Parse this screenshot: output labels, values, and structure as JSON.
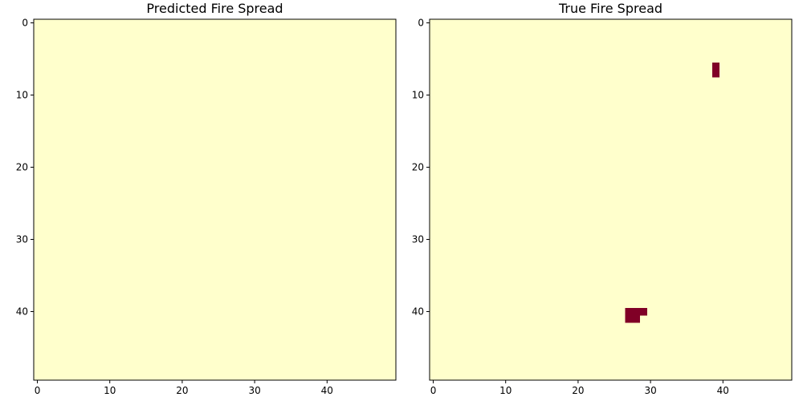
{
  "chart_data": [
    {
      "type": "heatmap",
      "title": "Predicted Fire Spread",
      "xlabel": "",
      "ylabel": "",
      "grid_size": [
        50,
        50
      ],
      "xlim": [
        -0.5,
        49.5
      ],
      "ylim": [
        49.5,
        -0.5
      ],
      "x_ticks": [
        0,
        10,
        20,
        30,
        40
      ],
      "y_ticks": [
        0,
        10,
        20,
        30,
        40
      ],
      "colormap": "YlOrRd",
      "value_range": [
        0,
        1
      ],
      "background_value": 0,
      "fire_cells": []
    },
    {
      "type": "heatmap",
      "title": "True Fire Spread",
      "xlabel": "",
      "ylabel": "",
      "grid_size": [
        50,
        50
      ],
      "xlim": [
        -0.5,
        49.5
      ],
      "ylim": [
        49.5,
        -0.5
      ],
      "x_ticks": [
        0,
        10,
        20,
        30,
        40
      ],
      "y_ticks": [
        0,
        10,
        20,
        30,
        40
      ],
      "colormap": "YlOrRd",
      "value_range": [
        0,
        1
      ],
      "background_value": 0,
      "fire_cells": [
        {
          "row": 6,
          "col": 39,
          "value": 1
        },
        {
          "row": 7,
          "col": 39,
          "value": 1
        },
        {
          "row": 40,
          "col": 27,
          "value": 1
        },
        {
          "row": 40,
          "col": 28,
          "value": 1
        },
        {
          "row": 40,
          "col": 29,
          "value": 1
        },
        {
          "row": 41,
          "col": 27,
          "value": 1
        },
        {
          "row": 41,
          "col": 28,
          "value": 1
        }
      ]
    }
  ],
  "colors": {
    "low": "#ffffcc",
    "high": "#800026",
    "axis": "#000000"
  }
}
